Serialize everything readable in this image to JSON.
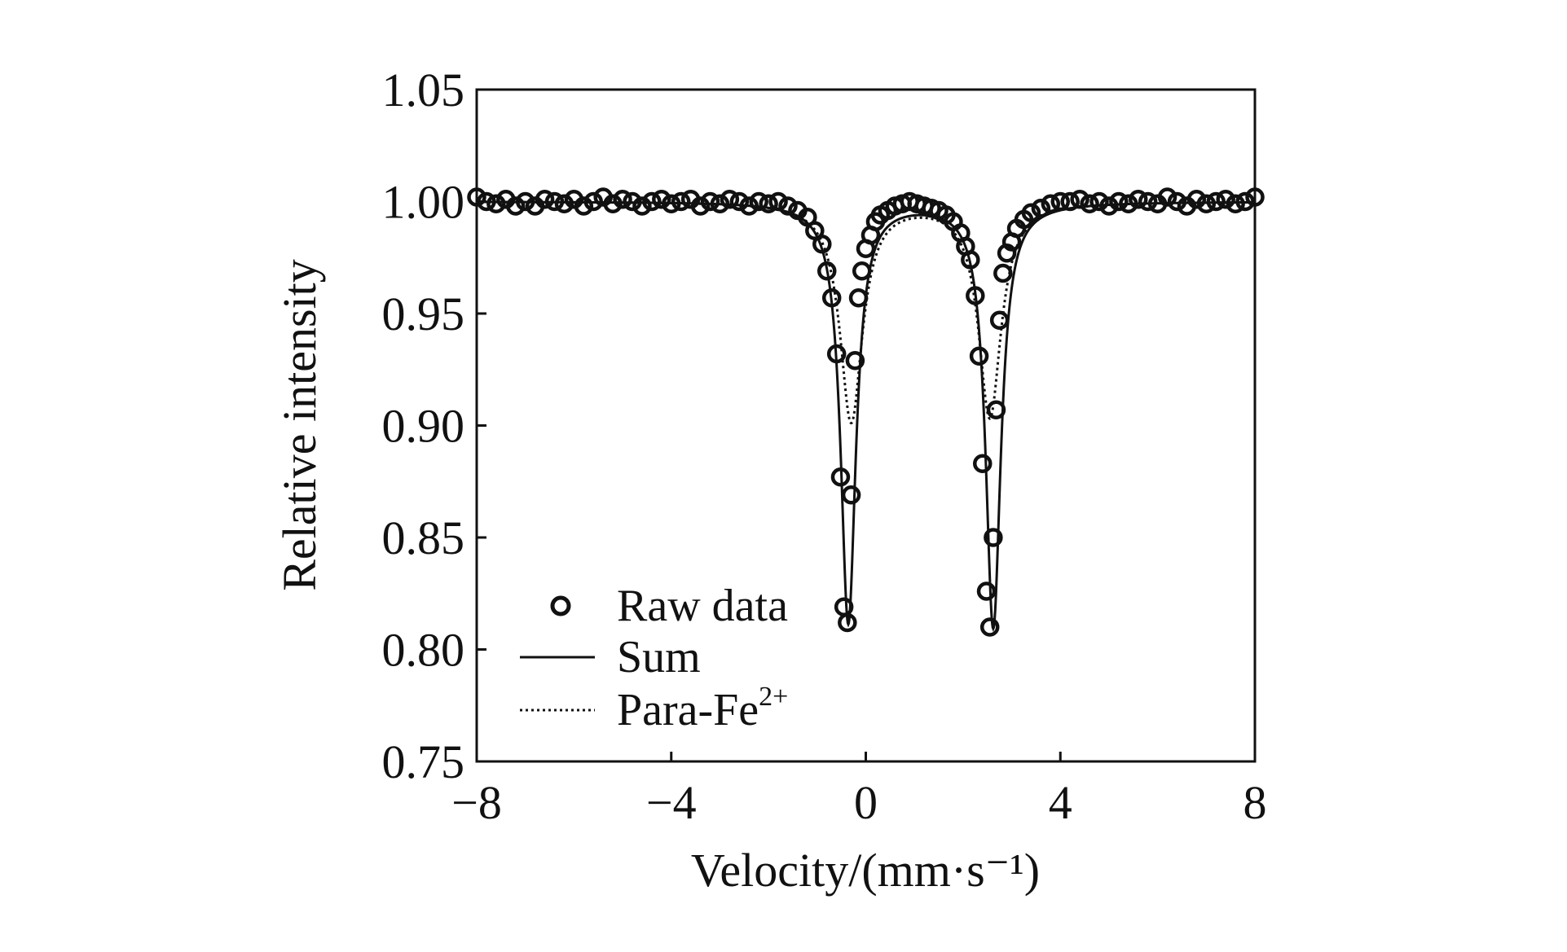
{
  "chart_data": {
    "type": "scatter",
    "title": "",
    "xlabel": "Velocity/(mm·s⁻¹)",
    "ylabel": "Relative intensity",
    "xlim": [
      -8,
      8
    ],
    "ylim": [
      0.75,
      1.05
    ],
    "xticks": [
      -8,
      -4,
      0,
      4,
      8
    ],
    "xtick_labels": [
      "−8",
      "−4",
      "0",
      "4",
      "8"
    ],
    "yticks": [
      0.75,
      0.8,
      0.85,
      0.9,
      0.95,
      1.0,
      1.05
    ],
    "ytick_labels": [
      "0.75",
      "0.80",
      "0.85",
      "0.90",
      "0.95",
      "1.00",
      "1.05"
    ],
    "grid": false,
    "legend_position": "bottom-left",
    "legend": [
      {
        "label": "Raw data",
        "style": "open-circle"
      },
      {
        "label": "Sum",
        "style": "solid-line"
      },
      {
        "label": "Para-Fe",
        "superscript": "2+",
        "style": "dotted-line"
      }
    ],
    "series": [
      {
        "name": "Raw data",
        "style": "open-circle",
        "x": [
          -8.0,
          -7.8,
          -7.6,
          -7.4,
          -7.2,
          -7.0,
          -6.8,
          -6.6,
          -6.4,
          -6.2,
          -6.0,
          -5.8,
          -5.6,
          -5.4,
          -5.2,
          -5.0,
          -4.8,
          -4.6,
          -4.4,
          -4.2,
          -4.0,
          -3.8,
          -3.6,
          -3.4,
          -3.2,
          -3.0,
          -2.8,
          -2.6,
          -2.4,
          -2.2,
          -2.0,
          -1.8,
          -1.6,
          -1.4,
          -1.2,
          -1.05,
          -0.9,
          -0.8,
          -0.7,
          -0.6,
          -0.52,
          -0.45,
          -0.38,
          -0.3,
          -0.22,
          -0.15,
          -0.08,
          0.0,
          0.1,
          0.2,
          0.3,
          0.45,
          0.6,
          0.75,
          0.9,
          1.05,
          1.2,
          1.35,
          1.5,
          1.65,
          1.8,
          1.95,
          2.05,
          2.15,
          2.25,
          2.33,
          2.4,
          2.48,
          2.55,
          2.62,
          2.68,
          2.75,
          2.82,
          2.9,
          3.0,
          3.1,
          3.25,
          3.4,
          3.6,
          3.8,
          4.0,
          4.2,
          4.4,
          4.6,
          4.8,
          5.0,
          5.2,
          5.4,
          5.6,
          5.8,
          6.0,
          6.2,
          6.4,
          6.6,
          6.8,
          7.0,
          7.2,
          7.4,
          7.6,
          7.8,
          8.0
        ],
        "y": [
          1.002,
          1.0,
          0.999,
          1.001,
          0.998,
          1.0,
          0.998,
          1.001,
          1.0,
          0.999,
          1.001,
          0.998,
          1.0,
          1.002,
          0.999,
          1.001,
          1.0,
          0.998,
          1.0,
          1.001,
          0.999,
          1.0,
          1.001,
          0.998,
          1.0,
          0.999,
          1.001,
          1.0,
          0.998,
          1.0,
          0.999,
          1.0,
          0.998,
          0.996,
          0.993,
          0.987,
          0.981,
          0.969,
          0.957,
          0.932,
          0.877,
          0.819,
          0.812,
          0.869,
          0.929,
          0.957,
          0.969,
          0.979,
          0.985,
          0.991,
          0.994,
          0.996,
          0.998,
          0.999,
          1.0,
          0.999,
          0.998,
          0.997,
          0.996,
          0.994,
          0.991,
          0.986,
          0.98,
          0.974,
          0.958,
          0.931,
          0.883,
          0.826,
          0.81,
          0.85,
          0.907,
          0.947,
          0.968,
          0.977,
          0.982,
          0.988,
          0.992,
          0.995,
          0.997,
          0.999,
          1.0,
          1.0,
          1.001,
          0.999,
          1.0,
          0.998,
          1.0,
          0.999,
          1.001,
          1.0,
          0.999,
          1.002,
          1.0,
          0.998,
          1.001,
          0.999,
          1.0,
          1.001,
          0.999,
          1.0,
          1.002
        ]
      },
      {
        "name": "Sum",
        "style": "solid-line",
        "peaks": [
          {
            "center": -0.36,
            "depth": 0.188,
            "hwhm": 0.19
          },
          {
            "center": 2.62,
            "depth": 0.19,
            "hwhm": 0.19
          }
        ],
        "baseline": 1.0
      },
      {
        "name": "Para-Fe2+",
        "style": "dotted-line",
        "peaks": [
          {
            "center": -0.3,
            "depth": 0.098,
            "hwhm": 0.28
          },
          {
            "center": 2.55,
            "depth": 0.096,
            "hwhm": 0.28
          }
        ],
        "baseline": 1.0
      }
    ]
  }
}
